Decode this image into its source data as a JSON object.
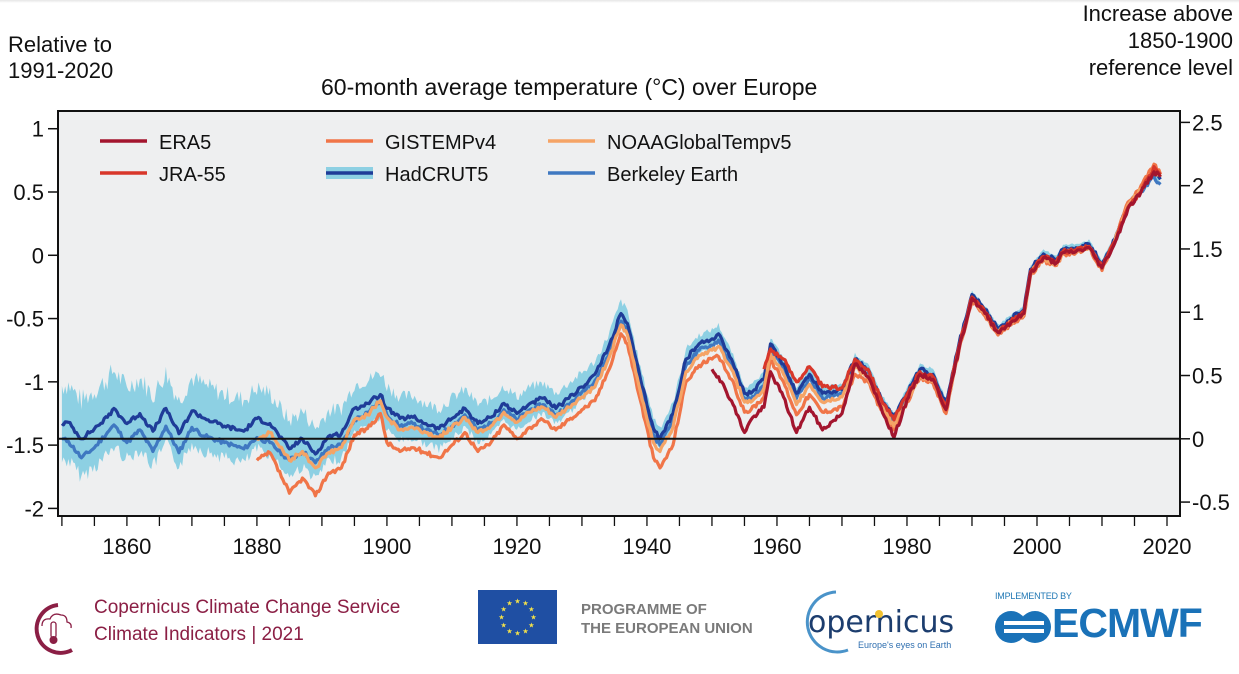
{
  "header": {
    "left_axis_label_line1": "Relative to",
    "left_axis_label_line2": "1991-2020",
    "right_axis_label_line1": "Increase above",
    "right_axis_label_line2": "1850-1900",
    "right_axis_label_line3": "reference level"
  },
  "footer": {
    "c3s_line1": "Copernicus Climate Change Service",
    "c3s_line2": "Climate Indicators | 2021",
    "eu_line1": "PROGRAMME OF",
    "eu_line2": "THE EUROPEAN UNION",
    "copernicus_name": "opernicus",
    "copernicus_tagline": "Europe's eyes on Earth",
    "implemented_by": "IMPLEMENTED BY",
    "ecmwf": "ECMWF"
  },
  "colors": {
    "background_plot": "#eeeff0",
    "ERA5": "#a3152e",
    "JRA-55": "#d8372a",
    "GISTEMPv4": "#f07548",
    "NOAAGlobalTempv5": "#f5a466",
    "HadCRUT5": "#1f3c98",
    "HadCRUT5_band": "#8dd0e3",
    "Berkeley Earth": "#3f78c1",
    "c3s": "#8b1f45",
    "ecmwf": "#1a72b8"
  },
  "chart_data": {
    "type": "line",
    "title": "60-month average temperature (°C) over Europe",
    "xlabel": "",
    "ylabel": "Relative to 1991-2020",
    "ylabel_right": "Increase above 1850-1900 reference level",
    "xlim": [
      1849.4,
      2022
    ],
    "ylim": [
      -2.06,
      1.14
    ],
    "ylim_right": [
      -0.61,
      2.59
    ],
    "right_axis_offset": 1.45,
    "xticks": [
      1860,
      1880,
      1900,
      1920,
      1940,
      1960,
      1980,
      2000,
      2020
    ],
    "xticks_minor_step": 5,
    "yticks": [
      1,
      0.5,
      0,
      -0.5,
      -1,
      -1.5,
      -2
    ],
    "yticks_labels": [
      "1",
      "0.5",
      "0",
      "-0.5",
      "-1",
      "-1.5",
      "-2"
    ],
    "yticks_right": [
      2.5,
      2,
      1.5,
      1,
      0.5,
      0,
      -0.5
    ],
    "yticks_right_labels": [
      "2.5",
      "2",
      "1.5",
      "1",
      "0.5",
      "0",
      "-0.5"
    ],
    "reference_line": {
      "value": -1.45,
      "label": "1850-1900 reference level"
    },
    "legend": {
      "placement": "top-left",
      "entries": [
        "ERA5",
        "GISTEMPv4",
        "NOAAGlobalTempv5",
        "JRA-55",
        "HadCRUT5",
        "Berkeley Earth"
      ]
    },
    "series": [
      {
        "name": "HadCRUT5",
        "x": [
          1850,
          1851,
          1853,
          1855,
          1857,
          1858,
          1860,
          1862,
          1864,
          1866,
          1868,
          1870,
          1872,
          1875,
          1878,
          1880,
          1882,
          1885,
          1887,
          1889,
          1891,
          1893,
          1895,
          1897,
          1899,
          1900,
          1902,
          1904,
          1906,
          1908,
          1910,
          1912,
          1914,
          1916,
          1918,
          1920,
          1922,
          1924,
          1926,
          1928,
          1930,
          1932,
          1934,
          1936,
          1937,
          1939,
          1941,
          1942,
          1944,
          1946,
          1948,
          1950,
          1951,
          1953,
          1955,
          1956,
          1958,
          1959,
          1961,
          1963,
          1965,
          1967,
          1970,
          1972,
          1974,
          1976,
          1978,
          1980,
          1982,
          1984,
          1986,
          1988,
          1990,
          1992,
          1994,
          1996,
          1998,
          1999,
          2001,
          2003,
          2004,
          2006,
          2008,
          2010,
          2012,
          2014,
          2016,
          2018,
          2019
        ],
        "y": [
          -1.33,
          -1.32,
          -1.45,
          -1.37,
          -1.28,
          -1.21,
          -1.33,
          -1.25,
          -1.39,
          -1.21,
          -1.41,
          -1.23,
          -1.29,
          -1.35,
          -1.39,
          -1.29,
          -1.33,
          -1.53,
          -1.45,
          -1.57,
          -1.43,
          -1.41,
          -1.21,
          -1.17,
          -1.1,
          -1.21,
          -1.29,
          -1.28,
          -1.33,
          -1.37,
          -1.29,
          -1.21,
          -1.33,
          -1.28,
          -1.17,
          -1.25,
          -1.17,
          -1.13,
          -1.21,
          -1.13,
          -1.04,
          -0.94,
          -0.74,
          -0.46,
          -0.54,
          -0.98,
          -1.37,
          -1.45,
          -1.25,
          -0.82,
          -0.7,
          -0.66,
          -0.62,
          -0.82,
          -1.09,
          -1.09,
          -0.98,
          -0.7,
          -0.86,
          -1.09,
          -0.94,
          -1.09,
          -1.06,
          -0.82,
          -0.9,
          -1.13,
          -1.29,
          -1.09,
          -0.9,
          -0.94,
          -1.17,
          -0.7,
          -0.31,
          -0.43,
          -0.58,
          -0.5,
          -0.43,
          -0.11,
          0.01,
          -0.03,
          0.05,
          0.06,
          0.09,
          -0.07,
          0.13,
          0.4,
          0.52,
          0.66,
          0.6
        ],
        "uncertainty_half_width": [
          0.3,
          0.3,
          0.3,
          0.3,
          0.3,
          0.3,
          0.28,
          0.28,
          0.28,
          0.28,
          0.26,
          0.26,
          0.26,
          0.25,
          0.25,
          0.24,
          0.24,
          0.22,
          0.22,
          0.2,
          0.2,
          0.2,
          0.19,
          0.18,
          0.18,
          0.18,
          0.17,
          0.17,
          0.16,
          0.16,
          0.16,
          0.15,
          0.15,
          0.14,
          0.14,
          0.13,
          0.13,
          0.12,
          0.12,
          0.12,
          0.11,
          0.1,
          0.1,
          0.1,
          0.1,
          0.09,
          0.09,
          0.09,
          0.08,
          0.08,
          0.07,
          0.07,
          0.07,
          0.06,
          0.06,
          0.06,
          0.05,
          0.05,
          0.05,
          0.05,
          0.05,
          0.05,
          0.04,
          0.04,
          0.04,
          0.04,
          0.04,
          0.04,
          0.04,
          0.04,
          0.04,
          0.04,
          0.03,
          0.03,
          0.03,
          0.03,
          0.03,
          0.03,
          0.03,
          0.03,
          0.03,
          0.03,
          0.03,
          0.03,
          0.03,
          0.03,
          0.03,
          0.03,
          0.04
        ]
      },
      {
        "name": "Berkeley Earth",
        "x": [
          1850,
          1851,
          1853,
          1855,
          1857,
          1858,
          1860,
          1862,
          1864,
          1866,
          1868,
          1870,
          1872,
          1875,
          1878,
          1880,
          1882,
          1885,
          1887,
          1889,
          1891,
          1893,
          1895,
          1897,
          1899,
          1900,
          1902,
          1904,
          1906,
          1908,
          1910,
          1912,
          1914,
          1916,
          1918,
          1920,
          1922,
          1924,
          1926,
          1928,
          1930,
          1932,
          1934,
          1936,
          1937,
          1939,
          1941,
          1942,
          1944,
          1946,
          1948,
          1950,
          1951,
          1953,
          1955,
          1956,
          1958,
          1959,
          1961,
          1963,
          1965,
          1967,
          1970,
          1972,
          1974,
          1976,
          1978,
          1980,
          1982,
          1984,
          1986,
          1988,
          1990,
          1992,
          1994,
          1996,
          1998,
          1999,
          2001,
          2003,
          2004,
          2006,
          2008,
          2010,
          2012,
          2014,
          2016,
          2018,
          2019
        ],
        "y": [
          -1.45,
          -1.47,
          -1.6,
          -1.52,
          -1.4,
          -1.34,
          -1.48,
          -1.38,
          -1.55,
          -1.35,
          -1.56,
          -1.36,
          -1.43,
          -1.48,
          -1.53,
          -1.44,
          -1.48,
          -1.62,
          -1.55,
          -1.64,
          -1.52,
          -1.5,
          -1.3,
          -1.24,
          -1.15,
          -1.26,
          -1.35,
          -1.33,
          -1.38,
          -1.42,
          -1.35,
          -1.26,
          -1.38,
          -1.33,
          -1.22,
          -1.3,
          -1.22,
          -1.18,
          -1.26,
          -1.18,
          -1.08,
          -0.99,
          -0.8,
          -0.52,
          -0.6,
          -1.04,
          -1.42,
          -1.5,
          -1.3,
          -0.87,
          -0.75,
          -0.71,
          -0.67,
          -0.87,
          -1.13,
          -1.14,
          -1.03,
          -0.74,
          -0.9,
          -1.13,
          -0.98,
          -1.13,
          -1.09,
          -0.85,
          -0.93,
          -1.16,
          -1.32,
          -1.12,
          -0.93,
          -0.97,
          -1.19,
          -0.72,
          -0.33,
          -0.45,
          -0.6,
          -0.52,
          -0.45,
          -0.13,
          -0.01,
          -0.05,
          0.03,
          0.04,
          0.07,
          -0.09,
          0.11,
          0.38,
          0.5,
          0.62,
          0.56
        ]
      },
      {
        "name": "NOAAGlobalTempv5",
        "x": [
          1880,
          1882,
          1885,
          1887,
          1889,
          1891,
          1893,
          1895,
          1897,
          1899,
          1900,
          1902,
          1904,
          1906,
          1908,
          1910,
          1912,
          1914,
          1916,
          1918,
          1920,
          1922,
          1924,
          1926,
          1928,
          1930,
          1932,
          1934,
          1936,
          1937,
          1939,
          1941,
          1942,
          1944,
          1946,
          1948,
          1950,
          1951,
          1953,
          1955,
          1956,
          1958,
          1959,
          1961,
          1963,
          1965,
          1967,
          1970,
          1972,
          1974,
          1976,
          1978,
          1980,
          1982,
          1984,
          1986,
          1988,
          1990,
          1992,
          1994,
          1996,
          1998,
          1999,
          2001,
          2003,
          2004,
          2006,
          2008,
          2010,
          2012,
          2014,
          2016,
          2018,
          2019
        ],
        "y": [
          -1.45,
          -1.4,
          -1.62,
          -1.55,
          -1.68,
          -1.56,
          -1.52,
          -1.3,
          -1.26,
          -1.15,
          -1.28,
          -1.38,
          -1.36,
          -1.4,
          -1.44,
          -1.36,
          -1.28,
          -1.4,
          -1.35,
          -1.24,
          -1.32,
          -1.24,
          -1.2,
          -1.28,
          -1.2,
          -1.12,
          -1.04,
          -0.83,
          -0.55,
          -0.63,
          -1.08,
          -1.48,
          -1.55,
          -1.36,
          -0.92,
          -0.79,
          -0.75,
          -0.72,
          -0.9,
          -1.16,
          -1.16,
          -1.05,
          -0.78,
          -0.94,
          -1.18,
          -1.02,
          -1.16,
          -1.12,
          -0.88,
          -0.96,
          -1.19,
          -1.35,
          -1.14,
          -0.95,
          -0.99,
          -1.22,
          -0.73,
          -0.34,
          -0.46,
          -0.61,
          -0.53,
          -0.46,
          -0.14,
          -0.02,
          -0.07,
          0.02,
          0.03,
          0.06,
          -0.1,
          0.12,
          0.4,
          0.52,
          0.68,
          0.62
        ]
      },
      {
        "name": "GISTEMPv4",
        "x": [
          1880,
          1882,
          1885,
          1887,
          1889,
          1891,
          1893,
          1895,
          1897,
          1899,
          1900,
          1902,
          1904,
          1906,
          1908,
          1910,
          1912,
          1914,
          1916,
          1918,
          1920,
          1922,
          1924,
          1926,
          1928,
          1930,
          1932,
          1934,
          1936,
          1937,
          1939,
          1941,
          1942,
          1944,
          1946,
          1948,
          1950,
          1951,
          1953,
          1955,
          1956,
          1958,
          1959,
          1961,
          1963,
          1965,
          1967,
          1970,
          1972,
          1974,
          1976,
          1978,
          1980,
          1982,
          1984,
          1986,
          1988,
          1990,
          1992,
          1994,
          1996,
          1998,
          1999,
          2001,
          2003,
          2004,
          2006,
          2008,
          2010,
          2012,
          2014,
          2016,
          2018,
          2019
        ],
        "y": [
          -1.62,
          -1.56,
          -1.88,
          -1.76,
          -1.9,
          -1.72,
          -1.68,
          -1.42,
          -1.37,
          -1.25,
          -1.48,
          -1.55,
          -1.52,
          -1.56,
          -1.6,
          -1.5,
          -1.4,
          -1.55,
          -1.48,
          -1.34,
          -1.45,
          -1.36,
          -1.3,
          -1.38,
          -1.3,
          -1.22,
          -1.15,
          -0.92,
          -0.62,
          -0.7,
          -1.15,
          -1.6,
          -1.68,
          -1.5,
          -1.0,
          -0.87,
          -0.82,
          -0.8,
          -0.98,
          -1.24,
          -1.22,
          -1.12,
          -0.82,
          -1.0,
          -1.26,
          -1.1,
          -1.24,
          -1.2,
          -0.94,
          -1.0,
          -1.22,
          -1.38,
          -1.16,
          -0.97,
          -1.01,
          -1.25,
          -0.75,
          -0.36,
          -0.48,
          -0.63,
          -0.55,
          -0.48,
          -0.16,
          -0.04,
          -0.08,
          0.01,
          0.02,
          0.06,
          -0.12,
          0.12,
          0.42,
          0.55,
          0.72,
          0.64
        ]
      },
      {
        "name": "JRA-55",
        "x": [
          1958,
          1959,
          1961,
          1963,
          1965,
          1967,
          1970,
          1972,
          1974,
          1976,
          1978,
          1980,
          1982,
          1984,
          1986,
          1988,
          1990,
          1992,
          1994,
          1996,
          1998,
          1999,
          2001,
          2003,
          2004,
          2006,
          2008,
          2010,
          2012,
          2014,
          2016,
          2018,
          2019
        ],
        "y": [
          -0.9,
          -0.74,
          -0.82,
          -1.0,
          -0.88,
          -1.04,
          -1.05,
          -0.82,
          -0.9,
          -1.13,
          -1.3,
          -1.1,
          -0.92,
          -0.96,
          -1.2,
          -0.72,
          -0.33,
          -0.45,
          -0.6,
          -0.52,
          -0.45,
          -0.13,
          -0.01,
          -0.05,
          0.03,
          0.04,
          0.07,
          -0.09,
          0.11,
          0.38,
          0.5,
          0.7,
          0.64
        ]
      },
      {
        "name": "ERA5",
        "x": [
          1950,
          1951,
          1953,
          1955,
          1956,
          1958,
          1959,
          1961,
          1963,
          1965,
          1967,
          1970,
          1972,
          1974,
          1976,
          1978,
          1980,
          1982,
          1984,
          1986,
          1988,
          1990,
          1992,
          1994,
          1996,
          1998,
          1999,
          2001,
          2003,
          2004,
          2006,
          2008,
          2010,
          2012,
          2014,
          2016,
          2018,
          2019
        ],
        "y": [
          -0.9,
          -0.96,
          -1.15,
          -1.4,
          -1.3,
          -1.2,
          -0.92,
          -1.12,
          -1.4,
          -1.2,
          -1.38,
          -1.25,
          -0.86,
          -0.96,
          -1.2,
          -1.44,
          -1.14,
          -0.94,
          -0.98,
          -1.22,
          -0.74,
          -0.34,
          -0.46,
          -0.61,
          -0.53,
          -0.46,
          -0.14,
          -0.02,
          -0.06,
          0.02,
          0.03,
          0.06,
          -0.1,
          0.1,
          0.37,
          0.5,
          0.66,
          0.62
        ]
      }
    ]
  }
}
